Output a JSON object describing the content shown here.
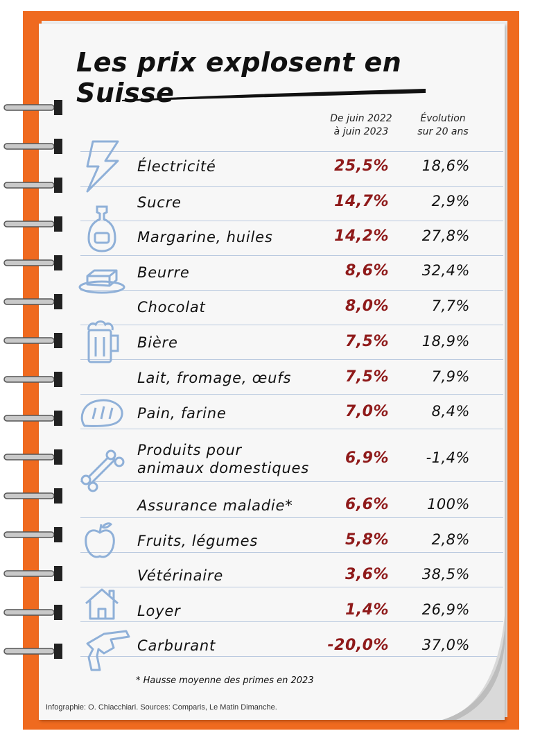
{
  "title": "Les prix explosent en Suisse",
  "columns": {
    "col1_line1": "De juin 2022",
    "col1_line2": "à juin 2023",
    "col2_line1": "Évolution",
    "col2_line2": "sur 20 ans"
  },
  "rows": [
    {
      "label": "Électricité",
      "yoy": "25,5%",
      "twenty": "18,6%",
      "icon": "lightning-icon"
    },
    {
      "label": "Sucre",
      "yoy": "14,7%",
      "twenty": "2,9%"
    },
    {
      "label": "Margarine,  huiles",
      "yoy": "14,2%",
      "twenty": "27,8%",
      "icon": "oil-bottle-icon"
    },
    {
      "label": "Beurre",
      "yoy": "8,6%",
      "twenty": "32,4%",
      "icon": "butter-dish-icon"
    },
    {
      "label": "Chocolat",
      "yoy": "8,0%",
      "twenty": "7,7%"
    },
    {
      "label": "Bière",
      "yoy": "7,5%",
      "twenty": "18,9%",
      "icon": "beer-mug-icon"
    },
    {
      "label": "Lait,  fromage,  œufs",
      "yoy": "7,5%",
      "twenty": "7,9%"
    },
    {
      "label": "Pain,  farine",
      "yoy": "7,0%",
      "twenty": "8,4%",
      "icon": "bread-icon"
    },
    {
      "label_line1": "Produits pour",
      "label_line2": "animaux domestiques",
      "yoy": "6,9%",
      "twenty": "-1,4%",
      "icon": "bone-icon"
    },
    {
      "label": "Assurance maladie*",
      "yoy": "6,6%",
      "twenty": "100%"
    },
    {
      "label": "Fruits,  légumes",
      "yoy": "5,8%",
      "twenty": "2,8%",
      "icon": "apple-icon"
    },
    {
      "label": "Vétérinaire",
      "yoy": "3,6%",
      "twenty": "38,5%"
    },
    {
      "label": "Loyer",
      "yoy": "1,4%",
      "twenty": "26,9%",
      "icon": "house-icon"
    },
    {
      "label": "Carburant",
      "yoy": "-20,0%",
      "twenty": "37,0%",
      "icon": "fuel-nozzle-icon"
    }
  ],
  "footnote": "* Hausse moyenne des primes en 2023",
  "credit": "Infographie: O. Chiacchiari. Sources: Comparis, Le Matin Dimanche.",
  "colors": {
    "backing": "#ef6a1f",
    "highlight": "#8f1a1a",
    "icon": "#8fb0d8",
    "rule": "#b9c9df"
  }
}
